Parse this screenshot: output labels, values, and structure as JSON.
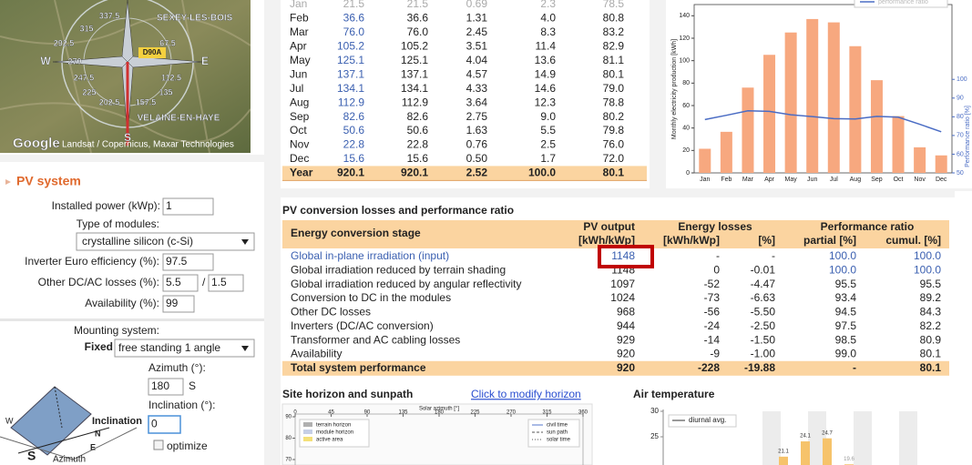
{
  "map": {
    "labels": [
      "SEXEY-LES-BOIS",
      "D90A",
      "VELAINE-EN-HAYE",
      "W",
      "E",
      "S",
      "337.5",
      "315",
      "292.5",
      "270",
      "247.5",
      "225",
      "202.5",
      "157.5",
      "135",
      "112.5",
      "67.5"
    ],
    "google": "Google",
    "attribution": "Landsat / Copernicus, Maxar Technologies"
  },
  "pv_system": {
    "title": "PV system",
    "installed_power_label": "Installed power (kWp):",
    "installed_power": "1",
    "module_type_label": "Type of modules:",
    "module_type": "crystalline silicon (c-Si)",
    "inverter_label": "Inverter Euro efficiency (%):",
    "inverter": "97.5",
    "losses_label": "Other DC/AC losses (%):",
    "dc_loss": "5.5",
    "separator": "/",
    "ac_loss": "1.5",
    "availability_label": "Availability (%):",
    "availability": "99",
    "mounting_label": "Mounting system:",
    "fixed": "Fixed",
    "mounting": "free standing 1 angle",
    "azimuth_label": "Azimuth (°):",
    "azimuth": "180",
    "azimuth_dir": "S",
    "inclination_label": "Inclination (°):",
    "inclination": "0",
    "optimize": "optimize",
    "diagram": {
      "inclination": "Inclination",
      "n": "N",
      "e": "E",
      "w": "W",
      "s": "S",
      "azimuth": "Azimuth"
    }
  },
  "monthly_table": {
    "rows": [
      [
        "Jan",
        "21.5",
        "21.5",
        "0.69",
        "2.3",
        "78.5"
      ],
      [
        "Feb",
        "36.6",
        "36.6",
        "1.31",
        "4.0",
        "80.8"
      ],
      [
        "Mar",
        "76.0",
        "76.0",
        "2.45",
        "8.3",
        "83.2"
      ],
      [
        "Apr",
        "105.2",
        "105.2",
        "3.51",
        "11.4",
        "82.9"
      ],
      [
        "May",
        "125.1",
        "125.1",
        "4.04",
        "13.6",
        "81.1"
      ],
      [
        "Jun",
        "137.1",
        "137.1",
        "4.57",
        "14.9",
        "80.1"
      ],
      [
        "Jul",
        "134.1",
        "134.1",
        "4.33",
        "14.6",
        "79.0"
      ],
      [
        "Aug",
        "112.9",
        "112.9",
        "3.64",
        "12.3",
        "78.8"
      ],
      [
        "Sep",
        "82.6",
        "82.6",
        "2.75",
        "9.0",
        "80.2"
      ],
      [
        "Oct",
        "50.6",
        "50.6",
        "1.63",
        "5.5",
        "79.8"
      ],
      [
        "Nov",
        "22.8",
        "22.8",
        "0.76",
        "2.5",
        "76.0"
      ],
      [
        "Dec",
        "15.6",
        "15.6",
        "0.50",
        "1.7",
        "72.0"
      ]
    ],
    "total": [
      "Year",
      "920.1",
      "920.1",
      "2.52",
      "100.0",
      "80.1"
    ]
  },
  "monthly_chart": {
    "type": "bar",
    "ylabel": "Monthly electricity production [kWh]",
    "y2label": "Performance ratio [%]",
    "legend": "performance ratio",
    "categories": [
      "Jan",
      "Feb",
      "Mar",
      "Apr",
      "May",
      "Jun",
      "Jul",
      "Aug",
      "Sep",
      "Oct",
      "Nov",
      "Dec"
    ],
    "values": [
      21.5,
      36.6,
      76.0,
      105.2,
      125.1,
      137.1,
      134.1,
      112.9,
      82.6,
      50.6,
      22.8,
      15.6
    ],
    "color": "#f7a87f",
    "line": {
      "name": "performance ratio",
      "axis": "y2",
      "color": "#4a6cc4",
      "values": [
        78.5,
        80.8,
        83.2,
        82.9,
        81.1,
        80.1,
        79.0,
        78.8,
        80.2,
        79.8,
        76.0,
        72.0
      ]
    },
    "ylim": [
      0,
      150
    ],
    "yticks": [
      0,
      20,
      40,
      60,
      80,
      100,
      120,
      140
    ],
    "y2lim": [
      50,
      140
    ],
    "y2ticks": [
      50,
      60,
      70,
      80,
      90,
      100
    ]
  },
  "losses": {
    "title": "PV conversion losses and performance ratio",
    "headers": {
      "stage": "Energy conversion stage",
      "output": "PV output",
      "output_unit": "[kWh/kWp]",
      "losses": "Energy losses",
      "loss_kwh": "[kWh/kWp]",
      "loss_pct": "[%]",
      "pr": "Performance ratio",
      "partial": "partial [%]",
      "cumul": "cumul. [%]"
    },
    "rows": [
      [
        "Global in-plane irradiation (input)",
        "1148",
        "-",
        "-",
        "100.0",
        "100.0"
      ],
      [
        "Global irradiation reduced by terrain shading",
        "1148",
        "0",
        "-0.01",
        "100.0",
        "100.0"
      ],
      [
        "Global irradiation reduced by angular reflectivity",
        "1097",
        "-52",
        "-4.47",
        "95.5",
        "95.5"
      ],
      [
        "Conversion to DC in the modules",
        "1024",
        "-73",
        "-6.63",
        "93.4",
        "89.2"
      ],
      [
        "Other DC losses",
        "968",
        "-56",
        "-5.50",
        "94.5",
        "84.3"
      ],
      [
        "Inverters (DC/AC conversion)",
        "944",
        "-24",
        "-2.50",
        "97.5",
        "82.2"
      ],
      [
        "Transformer and AC cabling losses",
        "929",
        "-14",
        "-1.50",
        "98.5",
        "80.9"
      ],
      [
        "Availability",
        "920",
        "-9",
        "-1.00",
        "99.0",
        "80.1"
      ]
    ],
    "total": [
      "Total system performance",
      "920",
      "-228",
      "-19.88",
      "-",
      "80.1"
    ]
  },
  "horizon": {
    "title": "Site horizon and sunpath",
    "link": "Click to modify horizon",
    "xlabel": "Solar azimuth [°]",
    "xticks": [
      0,
      45,
      90,
      135,
      180,
      225,
      270,
      315,
      360
    ],
    "yticks": [
      90,
      80,
      70
    ],
    "legend_left": [
      "terrain horizon",
      "module horizon",
      "active area"
    ],
    "legend_right": [
      "civil time",
      "sun path",
      "solar time"
    ]
  },
  "air_temperature": {
    "title": "Air temperature",
    "legend": "diurnal avg.",
    "ylim": [
      15,
      30
    ],
    "yticks": [
      30,
      25
    ],
    "values": [
      21.1,
      24.1,
      24.7,
      19.6
    ],
    "color": "#f6c36b"
  }
}
